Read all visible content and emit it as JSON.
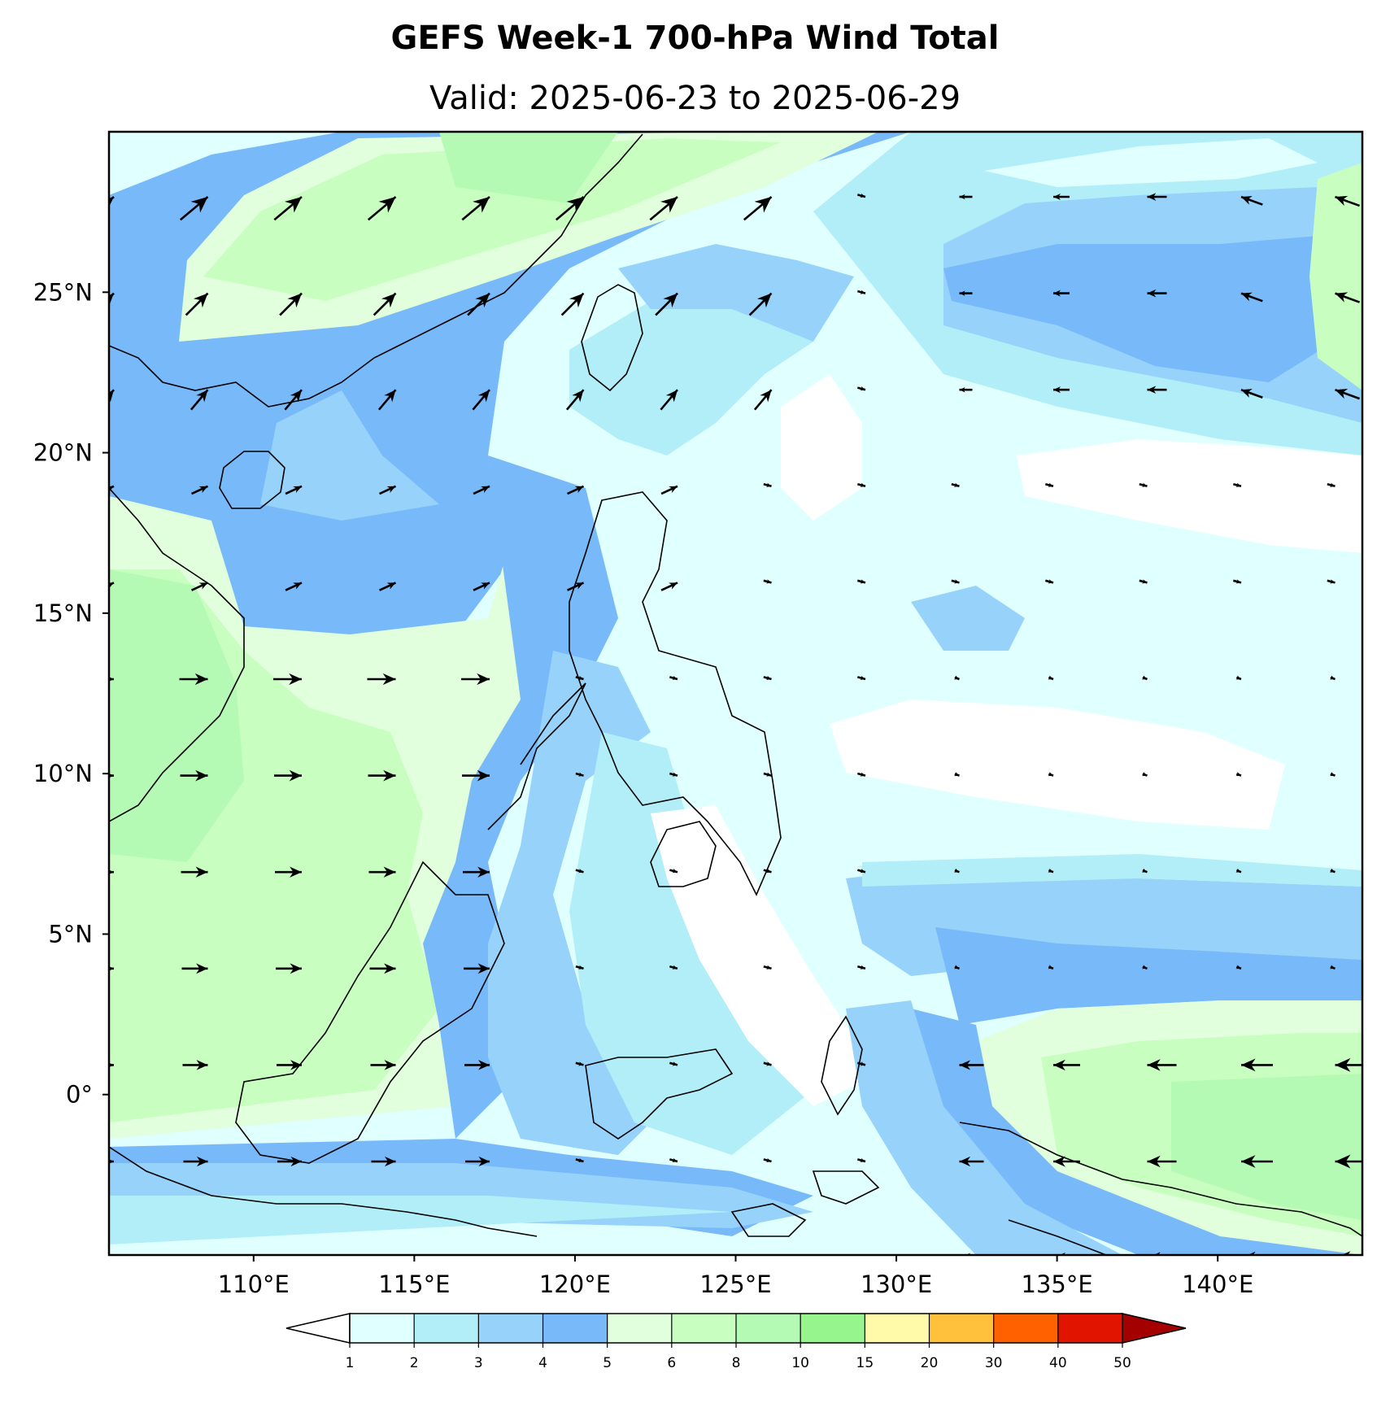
{
  "title": "GEFS Week-1 700-hPa Wind Total",
  "subtitle": "Valid: 2025-06-23 to 2025-06-29",
  "map": {
    "lon_range": [
      105.5,
      144.5
    ],
    "lat_range": [
      -5,
      30
    ],
    "lon_ticks": [
      "110°E",
      "115°E",
      "120°E",
      "125°E",
      "130°E",
      "135°E",
      "140°E"
    ],
    "lat_ticks": [
      "25°N",
      "20°N",
      "15°N",
      "10°N",
      "5°N",
      "0°"
    ],
    "lon_tick_values": [
      110,
      115,
      120,
      125,
      130,
      135,
      140
    ],
    "lat_tick_values": [
      25,
      20,
      15,
      10,
      5,
      0
    ]
  },
  "colorbar": {
    "levels": [
      "1",
      "2",
      "3",
      "4",
      "5",
      "6",
      "8",
      "10",
      "15",
      "20",
      "30",
      "40",
      "50"
    ],
    "colors": [
      "#e0ffff",
      "#b2eef8",
      "#96d2fa",
      "#78b9fa",
      "#e1ffdc",
      "#c8ffc0",
      "#b4fab4",
      "#96f58c",
      "#fffaaa",
      "#ffc03c",
      "#ff6000",
      "#e11400",
      "#a50000"
    ],
    "under_color": "#ffffff",
    "over_color": "#a50000"
  }
}
